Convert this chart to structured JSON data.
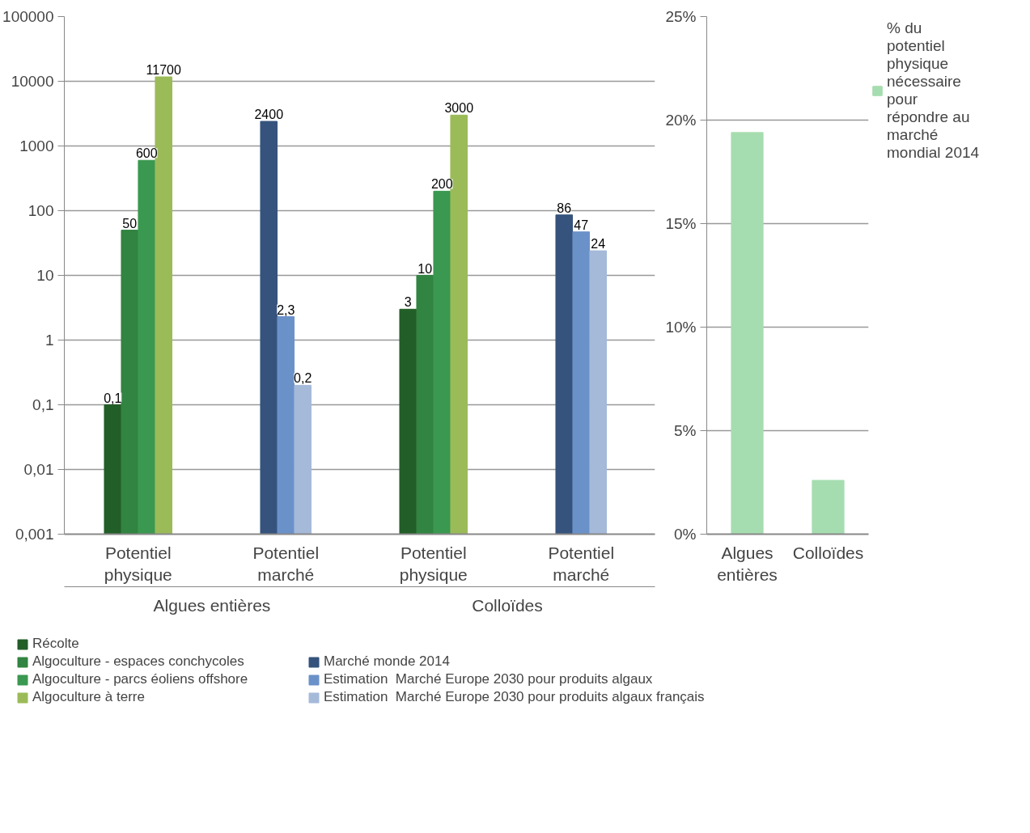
{
  "chart_data": [
    {
      "type": "bar",
      "categories": [
        "Potentiel physique",
        "Potentiel marché",
        "Potentiel physique",
        "Potentiel marché"
      ],
      "annotations": [
        "Algues entières",
        "Colloïdes"
      ],
      "log": "y",
      "ylim": [
        0.001,
        100000
      ],
      "yticks": [
        {
          "value": 0.001,
          "label": "0,001"
        },
        {
          "value": 0.01,
          "label": "0,01"
        },
        {
          "value": 0.1,
          "label": "0,1"
        },
        1,
        10,
        100,
        1000,
        10000,
        100000
      ],
      "grid": "y",
      "legend": "bottom",
      "data_labels": true,
      "series": [
        {
          "name": "Récolte",
          "color": "#225e28",
          "values": [
            0.1,
            null,
            3,
            null
          ],
          "value_labels": [
            "0,1",
            null,
            "3",
            null
          ]
        },
        {
          "name": "Algoculture - espaces conchycoles",
          "color": "#318441",
          "values": [
            50,
            null,
            10,
            null
          ],
          "value_labels": [
            "50",
            null,
            "10",
            null
          ]
        },
        {
          "name": "Algoculture - parcs éoliens offshore",
          "color": "#3a9850",
          "values": [
            600,
            null,
            200,
            null
          ],
          "value_labels": [
            "600",
            null,
            "200",
            null
          ]
        },
        {
          "name": "Algoculture à terre",
          "color": "#9bbb59",
          "values": [
            11700,
            null,
            3000,
            null
          ],
          "value_labels": [
            "11700",
            null,
            "3000",
            null
          ]
        },
        {
          "name": "Marché monde 2014",
          "color": "#35537c",
          "values": [
            null,
            2400,
            null,
            86
          ],
          "value_labels": [
            null,
            "2400",
            null,
            "86"
          ]
        },
        {
          "name": "Estimation  Marché Europe 2030 pour produits algaux",
          "color": "#6b91c9",
          "values": [
            null,
            2.3,
            null,
            47
          ],
          "value_labels": [
            null,
            "2,3",
            null,
            "47"
          ]
        },
        {
          "name": "Estimation  Marché Europe 2030 pour produits algaux français",
          "color": "#a5b9d9",
          "values": [
            null,
            0.2,
            null,
            24
          ],
          "value_labels": [
            null,
            "0,2",
            null,
            "24"
          ]
        }
      ]
    },
    {
      "type": "bar",
      "categories": [
        "Algues entières",
        "Colloïdes"
      ],
      "ylim": [
        0,
        25
      ],
      "yticks": [
        {
          "value": 0,
          "label": "0%"
        },
        {
          "value": 5,
          "label": "5%"
        },
        {
          "value": 10,
          "label": "10%"
        },
        {
          "value": 15,
          "label": "15%"
        },
        {
          "value": 20,
          "label": "20%"
        },
        {
          "value": 25,
          "label": "25%"
        }
      ],
      "grid": "y",
      "legend": "right",
      "series": [
        {
          "name": "% du potentiel physique nécessaire pour répondre au marché mondial 2014",
          "color": "#a6ddb0",
          "values": [
            19.4,
            2.6
          ]
        }
      ]
    }
  ]
}
